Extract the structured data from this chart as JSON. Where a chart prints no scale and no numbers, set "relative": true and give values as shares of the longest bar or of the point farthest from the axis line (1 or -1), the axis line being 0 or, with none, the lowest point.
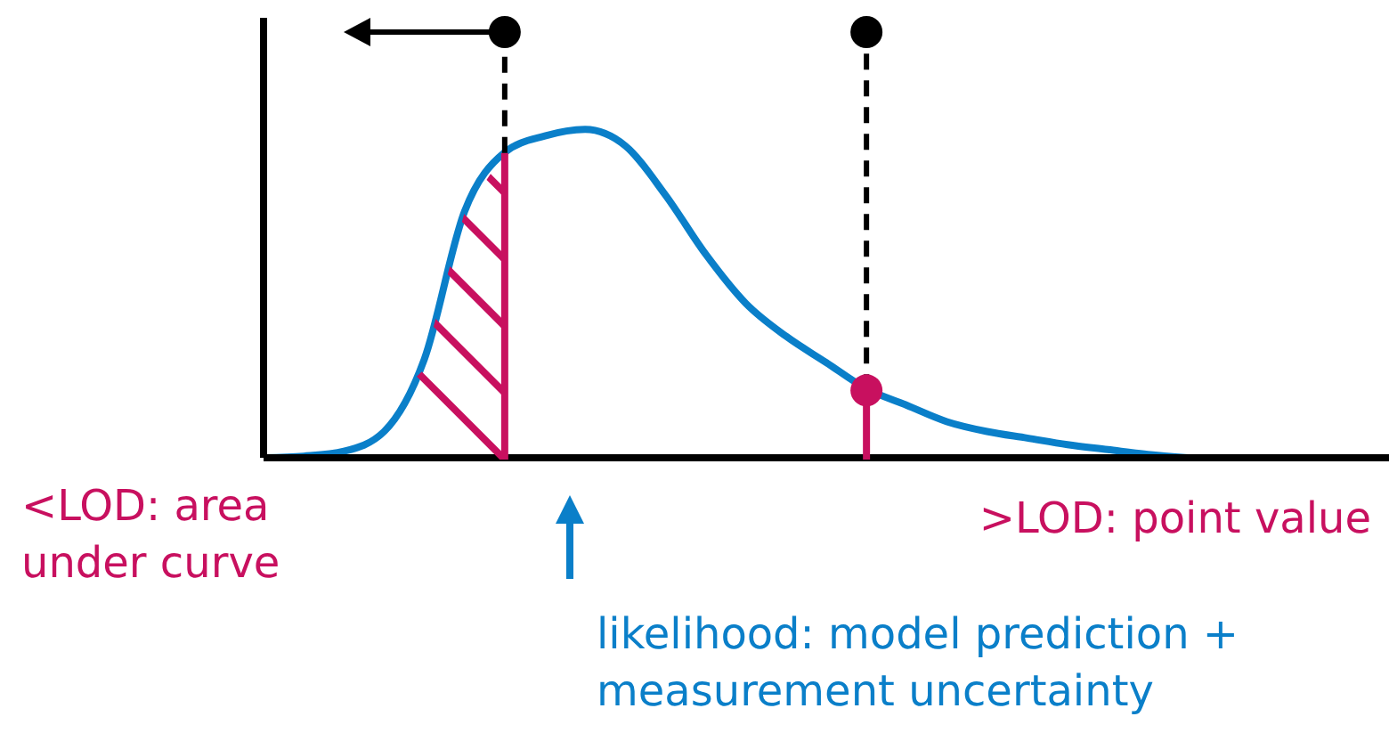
{
  "chart_data": {
    "type": "line",
    "relative": true,
    "categories": [
      null,
      null,
      null,
      null,
      null,
      null,
      null,
      null,
      null,
      null,
      null,
      null,
      null,
      null,
      null,
      null,
      null,
      null,
      null,
      null,
      null,
      null,
      null,
      null,
      null,
      null,
      null,
      null,
      null
    ],
    "series": [
      {
        "color": "#0a7fc9",
        "values": [
          0,
          0.005,
          0.02,
          0.08,
          0.3,
          0.75,
          0.93,
          0.98,
          1,
          0.95,
          0.8,
          0.62,
          0.47,
          0.37,
          0.29,
          0.21,
          0.16,
          0.11,
          0.08,
          0.06,
          0.04,
          0.025,
          0.01,
          0,
          null,
          null,
          null,
          null,
          null
        ]
      }
    ],
    "marker": "none",
    "annotations": [
      "<LOD: area under curve",
      ">LOD: point value",
      "likelihood: model prediction + measurement uncertainty"
    ]
  }
}
